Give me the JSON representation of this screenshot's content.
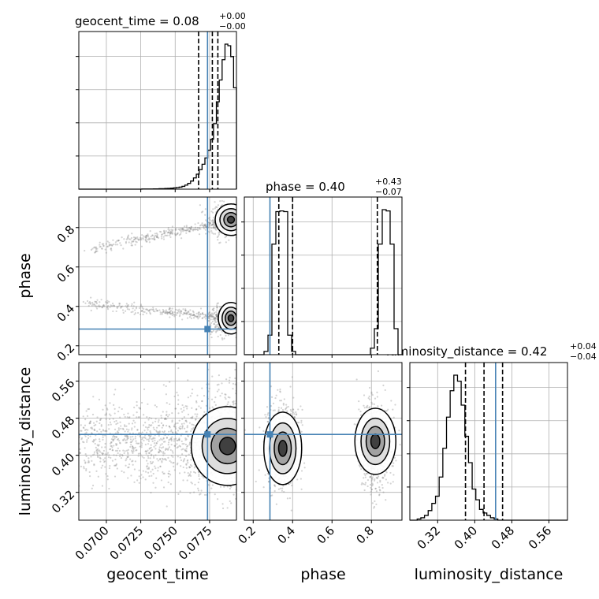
{
  "chart_data": {
    "type": "corner",
    "parameters": [
      "geocent_time",
      "phase",
      "luminosity_distance"
    ],
    "truth": {
      "geocent_time": 0.07735,
      "phase": 0.285,
      "luminosity_distance": 0.445
    },
    "titles": {
      "geocent_time": {
        "label": "geocent_time = 0.08",
        "sup": "+0.00",
        "sub": "−0.00"
      },
      "phase": {
        "label": "phase = 0.40",
        "sup": "+0.43",
        "sub": "−0.07"
      },
      "luminosity_distance": {
        "label": "luminosity_distance = 0.42",
        "sup": "+0.04",
        "sub": "−0.04"
      }
    },
    "axis_labels": {
      "geocent_time": "geocent_time",
      "phase": "phase",
      "luminosity_distance": "luminosity_distance"
    },
    "ranges": {
      "geocent_time": [
        0.068,
        0.07945
      ],
      "phase": [
        0.155,
        0.955
      ],
      "luminosity_distance": [
        0.26,
        0.6
      ]
    },
    "ticks": {
      "geocent_time": [
        "0.0700",
        "0.0725",
        "0.0750",
        "0.0775"
      ],
      "phase_x": [
        "0.2",
        "0.4",
        "0.6",
        "0.8"
      ],
      "phase_y": [
        "0.2",
        "0.4",
        "0.6",
        "0.8"
      ],
      "luminosity_distance": [
        "0.32",
        "0.40",
        "0.48",
        "0.56"
      ]
    },
    "quantiles": {
      "geocent_time": [
        0.0767,
        0.0777,
        0.0781
      ],
      "phase": [
        0.33,
        0.4,
        0.83
      ],
      "luminosity_distance": [
        0.38,
        0.42,
        0.46
      ]
    },
    "histograms": {
      "geocent_time": [
        0,
        0,
        0,
        0,
        0,
        0,
        0,
        0,
        0,
        0,
        0,
        0,
        0,
        0,
        0,
        0,
        0,
        0,
        0,
        0,
        0,
        0,
        1,
        1,
        1,
        1,
        2,
        2,
        3,
        3,
        4,
        5,
        6,
        8,
        10,
        13,
        18,
        26,
        37,
        52,
        72,
        96,
        125,
        160,
        200,
        250,
        320,
        420,
        560,
        700,
        830,
        930,
        920,
        850,
        650
      ],
      "phase": [
        0,
        0,
        0,
        0,
        0,
        5,
        30,
        170,
        220,
        221,
        220,
        30,
        5,
        0,
        0,
        0,
        0,
        0,
        0,
        0,
        0,
        0,
        0,
        0,
        0,
        0,
        0,
        0,
        0,
        0,
        0,
        0,
        10,
        40,
        170,
        223,
        221,
        170,
        40,
        0
      ],
      "luminosity_distance": [
        0,
        0,
        1,
        2,
        4,
        8,
        14,
        20,
        36,
        60,
        86,
        108,
        121,
        116,
        96,
        70,
        48,
        26,
        17,
        9,
        6,
        4,
        2,
        1,
        0,
        0,
        0,
        0,
        0,
        0,
        0,
        0,
        0,
        0,
        0,
        0,
        0,
        0,
        0,
        0,
        0,
        0,
        0
      ]
    },
    "grid": true,
    "scatter_color": "#808080",
    "contour_color": "#000000",
    "truth_color": "#4682b4"
  }
}
